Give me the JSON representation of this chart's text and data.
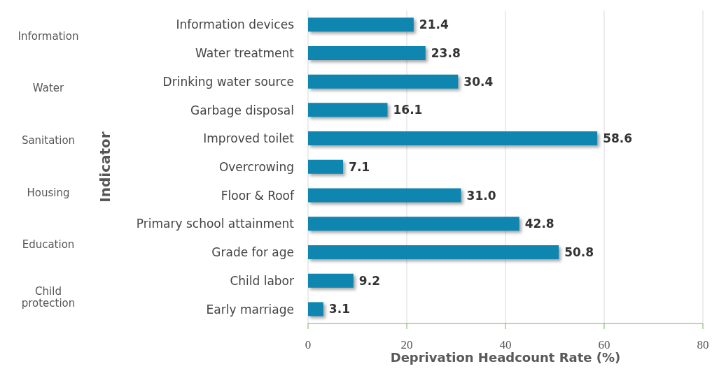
{
  "chart_data": {
    "type": "bar",
    "orientation": "horizontal",
    "xlabel": "Deprivation Headcount Rate (%)",
    "ylabel": "Indicator",
    "categories": [
      "Information devices",
      "Water treatment",
      "Drinking water source",
      "Garbage disposal",
      "Improved toilet",
      "Overcrowing",
      "Floor & Roof",
      "Primary school attainment",
      "Grade for age",
      "Child labor",
      "Early marriage"
    ],
    "values": [
      21.4,
      23.8,
      30.4,
      16.1,
      58.6,
      7.1,
      31.0,
      42.8,
      50.8,
      9.2,
      3.1
    ],
    "value_labels": [
      "21.4",
      "23.8",
      "30.4",
      "16.1",
      "58.6",
      "7.1",
      "31.0",
      "42.8",
      "50.8",
      "9.2",
      "3.1"
    ],
    "color": "#0e86b0",
    "xlim": [
      0,
      80
    ],
    "xticks": [
      0,
      20,
      40,
      60,
      80
    ],
    "grid": "x",
    "annotations": [
      "Information",
      "Water",
      "Sanitation",
      "Housing",
      "Education",
      "Child protection"
    ]
  }
}
